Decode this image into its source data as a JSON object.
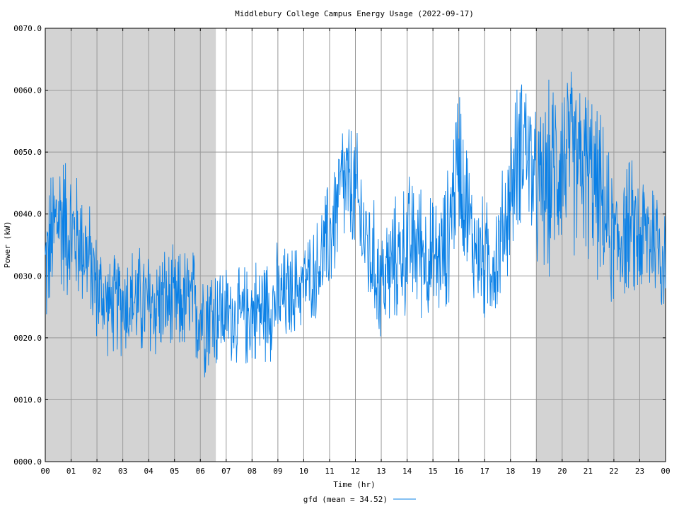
{
  "chart_data": {
    "type": "line",
    "title": "Middlebury College Campus Energy Usage (2022-09-17)",
    "xlabel": "Time (hr)",
    "ylabel": "Power (kW)",
    "xlim": [
      0,
      24
    ],
    "ylim": [
      0,
      70
    ],
    "x_tick_labels": [
      "00",
      "01",
      "02",
      "03",
      "04",
      "05",
      "06",
      "07",
      "08",
      "09",
      "10",
      "11",
      "12",
      "13",
      "14",
      "15",
      "16",
      "17",
      "18",
      "19",
      "20",
      "21",
      "22",
      "23",
      "00"
    ],
    "y_tick_labels": [
      "0000.0",
      "0010.0",
      "0020.0",
      "0030.0",
      "0040.0",
      "0050.0",
      "0060.0",
      "0070.0"
    ],
    "shaded_regions": [
      [
        0,
        6.6
      ],
      [
        19,
        24
      ]
    ],
    "grid": true,
    "legend": {
      "position": "bottom-center",
      "label": "gfd (mean = 34.52)"
    },
    "series": [
      {
        "name": "gfd",
        "color": "#0a80e6",
        "points": [
          [
            0.0,
            31
          ],
          [
            0.5,
            40
          ],
          [
            1.0,
            37
          ],
          [
            1.5,
            35
          ],
          [
            2.0,
            28
          ],
          [
            2.5,
            25
          ],
          [
            3.0,
            26
          ],
          [
            3.5,
            26
          ],
          [
            4.0,
            25
          ],
          [
            4.5,
            26
          ],
          [
            5.0,
            25
          ],
          [
            5.5,
            26
          ],
          [
            6.0,
            24
          ],
          [
            6.5,
            24
          ],
          [
            7.0,
            24
          ],
          [
            7.5,
            23
          ],
          [
            8.0,
            24
          ],
          [
            8.5,
            25
          ],
          [
            9.0,
            26
          ],
          [
            9.5,
            27
          ],
          [
            10.0,
            29
          ],
          [
            10.5,
            31
          ],
          [
            11.0,
            36
          ],
          [
            11.5,
            45
          ],
          [
            12.0,
            43
          ],
          [
            12.5,
            34
          ],
          [
            13.0,
            29
          ],
          [
            13.5,
            32
          ],
          [
            14.0,
            35
          ],
          [
            14.5,
            35
          ],
          [
            15.0,
            32
          ],
          [
            15.5,
            34
          ],
          [
            16.0,
            50
          ],
          [
            16.5,
            36
          ],
          [
            17.0,
            32
          ],
          [
            17.5,
            33
          ],
          [
            18.0,
            43
          ],
          [
            18.5,
            54
          ],
          [
            19.0,
            43
          ],
          [
            19.5,
            45
          ],
          [
            20.0,
            50
          ],
          [
            20.5,
            48
          ],
          [
            21.0,
            47
          ],
          [
            21.5,
            42
          ],
          [
            22.0,
            35
          ],
          [
            22.5,
            38
          ],
          [
            23.0,
            36
          ],
          [
            23.5,
            37
          ],
          [
            24.0,
            33
          ]
        ],
        "spread": [
          10,
          12,
          10,
          9,
          8,
          7,
          8,
          8,
          9,
          8,
          8,
          8,
          9,
          9,
          7,
          7,
          8,
          8,
          8,
          7,
          6,
          7,
          9,
          10,
          10,
          9,
          9,
          9,
          10,
          10,
          9,
          10,
          12,
          9,
          9,
          9,
          10,
          12,
          11,
          14,
          14,
          13,
          13,
          12,
          10,
          10,
          10,
          10,
          9
        ]
      }
    ]
  }
}
